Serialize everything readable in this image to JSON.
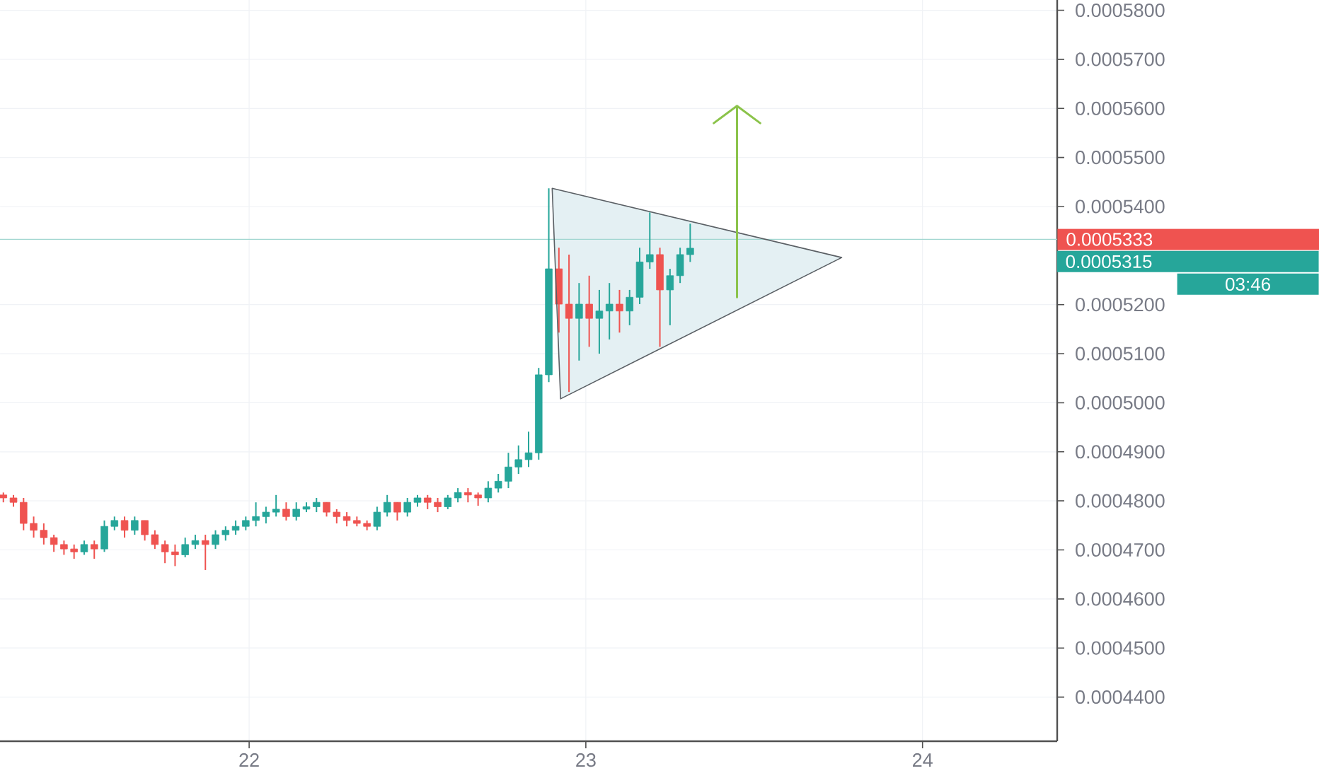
{
  "chart_data": {
    "type": "candlestick",
    "x": [
      21.27,
      21.3,
      21.33,
      21.36,
      21.39,
      21.42,
      21.45,
      21.48,
      21.51,
      21.54,
      21.57,
      21.6,
      21.63,
      21.66,
      21.69,
      21.72,
      21.75,
      21.78,
      21.81,
      21.84,
      21.87,
      21.9,
      21.93,
      21.96,
      21.99,
      22.02,
      22.05,
      22.08,
      22.11,
      22.14,
      22.17,
      22.2,
      22.23,
      22.26,
      22.29,
      22.32,
      22.35,
      22.38,
      22.41,
      22.44,
      22.47,
      22.5,
      22.53,
      22.56,
      22.59,
      22.62,
      22.65,
      22.68,
      22.71,
      22.74,
      22.77,
      22.8,
      22.83,
      22.86,
      22.89,
      22.92,
      22.95,
      22.98,
      23.01,
      23.04,
      23.07,
      23.1,
      23.13,
      23.16,
      23.19,
      23.22,
      23.25,
      23.28,
      23.31
    ],
    "ohlc": [
      [
        0.0004812,
        0.0004817,
        0.0004797,
        0.0004806
      ],
      [
        0.0004806,
        0.0004812,
        0.0004788,
        0.0004797
      ],
      [
        0.0004797,
        0.0004806,
        0.000474,
        0.0004754
      ],
      [
        0.0004754,
        0.0004768,
        0.0004725,
        0.000474
      ],
      [
        0.000474,
        0.0004754,
        0.0004711,
        0.0004725
      ],
      [
        0.0004725,
        0.0004731,
        0.0004696,
        0.0004711
      ],
      [
        0.0004711,
        0.0004719,
        0.000469,
        0.0004702
      ],
      [
        0.0004702,
        0.0004711,
        0.0004682,
        0.0004696
      ],
      [
        0.0004696,
        0.0004719,
        0.000469,
        0.0004711
      ],
      [
        0.0004711,
        0.0004719,
        0.0004682,
        0.0004702
      ],
      [
        0.0004702,
        0.000476,
        0.0004696,
        0.0004748
      ],
      [
        0.0004748,
        0.0004768,
        0.000474,
        0.000476
      ],
      [
        0.000476,
        0.0004768,
        0.0004725,
        0.000474
      ],
      [
        0.000474,
        0.0004768,
        0.0004731,
        0.000476
      ],
      [
        0.000476,
        0.000476,
        0.0004719,
        0.0004731
      ],
      [
        0.0004731,
        0.000474,
        0.0004702,
        0.0004711
      ],
      [
        0.0004711,
        0.0004719,
        0.0004673,
        0.0004696
      ],
      [
        0.0004696,
        0.0004711,
        0.0004667,
        0.000469
      ],
      [
        0.000469,
        0.0004725,
        0.0004685,
        0.0004711
      ],
      [
        0.0004711,
        0.0004731,
        0.0004702,
        0.0004719
      ],
      [
        0.0004719,
        0.0004731,
        0.0004659,
        0.0004711
      ],
      [
        0.0004711,
        0.000474,
        0.0004702,
        0.0004731
      ],
      [
        0.0004731,
        0.0004748,
        0.0004719,
        0.000474
      ],
      [
        0.000474,
        0.000476,
        0.0004731,
        0.0004748
      ],
      [
        0.0004748,
        0.0004768,
        0.000474,
        0.000476
      ],
      [
        0.000476,
        0.0004797,
        0.0004748,
        0.0004768
      ],
      [
        0.0004768,
        0.0004788,
        0.0004754,
        0.0004777
      ],
      [
        0.0004777,
        0.0004812,
        0.0004768,
        0.0004783
      ],
      [
        0.0004783,
        0.0004797,
        0.000476,
        0.0004768
      ],
      [
        0.0004768,
        0.0004797,
        0.000476,
        0.0004783
      ],
      [
        0.0004783,
        0.0004797,
        0.0004777,
        0.0004788
      ],
      [
        0.0004788,
        0.0004806,
        0.0004777,
        0.0004797
      ],
      [
        0.0004797,
        0.0004797,
        0.0004768,
        0.0004777
      ],
      [
        0.0004777,
        0.0004783,
        0.0004754,
        0.0004768
      ],
      [
        0.0004768,
        0.0004777,
        0.0004748,
        0.000476
      ],
      [
        0.000476,
        0.0004768,
        0.0004748,
        0.0004754
      ],
      [
        0.0004754,
        0.000476,
        0.000474,
        0.0004748
      ],
      [
        0.0004748,
        0.0004788,
        0.000474,
        0.0004777
      ],
      [
        0.0004777,
        0.0004812,
        0.0004768,
        0.0004797
      ],
      [
        0.0004797,
        0.0004797,
        0.000476,
        0.0004777
      ],
      [
        0.0004777,
        0.0004806,
        0.0004768,
        0.0004797
      ],
      [
        0.0004797,
        0.0004812,
        0.0004788,
        0.0004806
      ],
      [
        0.0004806,
        0.0004812,
        0.0004783,
        0.0004797
      ],
      [
        0.0004797,
        0.0004806,
        0.0004777,
        0.0004788
      ],
      [
        0.0004788,
        0.0004812,
        0.0004783,
        0.0004806
      ],
      [
        0.0004806,
        0.0004826,
        0.0004797,
        0.0004817
      ],
      [
        0.0004817,
        0.0004826,
        0.0004797,
        0.0004812
      ],
      [
        0.0004812,
        0.0004817,
        0.000479,
        0.0004806
      ],
      [
        0.0004806,
        0.000484,
        0.0004797,
        0.0004826
      ],
      [
        0.0004826,
        0.0004855,
        0.0004817,
        0.000484
      ],
      [
        0.000484,
        0.0004898,
        0.0004826,
        0.0004869
      ],
      [
        0.0004869,
        0.0004913,
        0.0004855,
        0.0004884
      ],
      [
        0.0004884,
        0.0004941,
        0.0004869,
        0.0004898
      ],
      [
        0.0004898,
        0.0005071,
        0.0004884,
        0.0005057
      ],
      [
        0.0005057,
        0.0005437,
        0.0005042,
        0.0005273
      ],
      [
        0.0005273,
        0.0005316,
        0.0005143,
        0.0005201
      ],
      [
        0.0005201,
        0.0005302,
        0.0005022,
        0.0005172
      ],
      [
        0.0005172,
        0.0005244,
        0.0005086,
        0.0005201
      ],
      [
        0.0005201,
        0.0005259,
        0.0005114,
        0.0005172
      ],
      [
        0.0005172,
        0.000523,
        0.00051,
        0.0005187
      ],
      [
        0.0005187,
        0.0005244,
        0.0005129,
        0.0005201
      ],
      [
        0.0005201,
        0.000523,
        0.0005143,
        0.0005187
      ],
      [
        0.0005187,
        0.000523,
        0.0005158,
        0.0005215
      ],
      [
        0.0005215,
        0.0005316,
        0.0005201,
        0.0005287
      ],
      [
        0.0005287,
        0.0005388,
        0.0005273,
        0.0005302
      ],
      [
        0.0005302,
        0.0005316,
        0.0005114,
        0.000523
      ],
      [
        0.000523,
        0.0005273,
        0.0005158,
        0.0005259
      ],
      [
        0.0005259,
        0.0005316,
        0.0005244,
        0.0005302
      ],
      [
        0.0005302,
        0.0005365,
        0.0005287,
        0.0005315
      ]
    ],
    "colors": [
      "#ef5350",
      "#ef5350",
      "#ef5350",
      "#ef5350",
      "#ef5350",
      "#ef5350",
      "#ef5350",
      "#ef5350",
      "#26a69a",
      "#ef5350",
      "#26a69a",
      "#26a69a",
      "#ef5350",
      "#26a69a",
      "#ef5350",
      "#ef5350",
      "#ef5350",
      "#ef5350",
      "#26a69a",
      "#26a69a",
      "#ef5350",
      "#26a69a",
      "#26a69a",
      "#26a69a",
      "#26a69a",
      "#26a69a",
      "#26a69a",
      "#26a69a",
      "#ef5350",
      "#26a69a",
      "#26a69a",
      "#26a69a",
      "#ef5350",
      "#ef5350",
      "#ef5350",
      "#ef5350",
      "#ef5350",
      "#26a69a",
      "#26a69a",
      "#ef5350",
      "#26a69a",
      "#26a69a",
      "#ef5350",
      "#ef5350",
      "#26a69a",
      "#26a69a",
      "#ef5350",
      "#ef5350",
      "#26a69a",
      "#26a69a",
      "#26a69a",
      "#26a69a",
      "#26a69a",
      "#26a69a",
      "#26a69a",
      "#ef5350",
      "#ef5350",
      "#26a69a",
      "#ef5350",
      "#26a69a",
      "#26a69a",
      "#ef5350",
      "#26a69a",
      "#26a69a",
      "#26a69a",
      "#ef5350",
      "#26a69a",
      "#26a69a",
      "#26a69a"
    ],
    "xlim": [
      21.26,
      24.4
    ],
    "xticks": [
      22,
      23,
      24
    ],
    "ylim": [
      0.000431,
      0.0005821
    ],
    "yticks": [
      {
        "value": 0.00044,
        "label": "0.0004400"
      },
      {
        "value": 0.00045,
        "label": "0.0004500"
      },
      {
        "value": 0.00046,
        "label": "0.0004600"
      },
      {
        "value": 0.00047,
        "label": "0.0004700"
      },
      {
        "value": 0.00048,
        "label": "0.0004800"
      },
      {
        "value": 0.00049,
        "label": "0.0004900"
      },
      {
        "value": 0.0005,
        "label": "0.0005000"
      },
      {
        "value": 0.00051,
        "label": "0.0005100"
      },
      {
        "value": 0.00052,
        "label": "0.0005200"
      },
      {
        "value": 0.00054,
        "label": "0.0005400"
      },
      {
        "value": 0.00055,
        "label": "0.0005500"
      },
      {
        "value": 0.00056,
        "label": "0.0005600"
      },
      {
        "value": 0.00057,
        "label": "0.0005700"
      },
      {
        "value": 0.00058,
        "label": "0.0005800"
      }
    ],
    "ref_lines": [
      {
        "axis": "y",
        "value": 0.0005333,
        "label": "0.0005333",
        "color": "#a0d6d0"
      }
    ],
    "annotations": [
      "0.0005315",
      "03:46"
    ],
    "grid": true
  }
}
